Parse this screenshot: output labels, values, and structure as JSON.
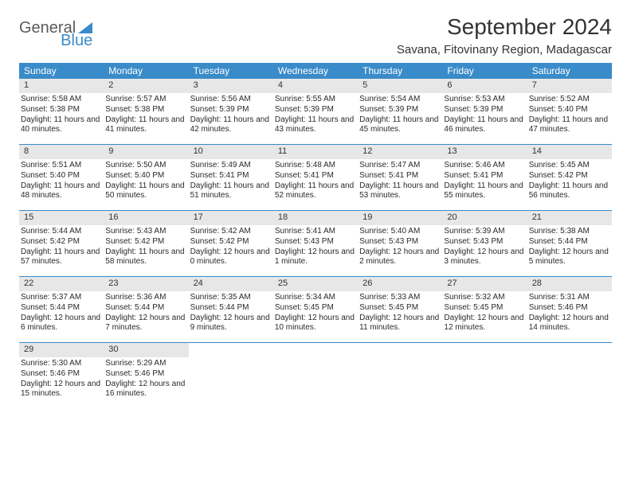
{
  "brand": {
    "part1": "General",
    "part2": "Blue"
  },
  "title": "September 2024",
  "location": "Savana, Fitovinany Region, Madagascar",
  "colors": {
    "header_bg": "#3a8bc9",
    "header_text": "#ffffff",
    "daynum_bg": "#e7e7e7",
    "rule": "#3a8bc9",
    "text": "#2a2a2a"
  },
  "weekdays": [
    "Sunday",
    "Monday",
    "Tuesday",
    "Wednesday",
    "Thursday",
    "Friday",
    "Saturday"
  ],
  "weeks": [
    [
      {
        "n": "1",
        "sr": "5:58 AM",
        "ss": "5:38 PM",
        "dl": "11 hours and 40 minutes."
      },
      {
        "n": "2",
        "sr": "5:57 AM",
        "ss": "5:38 PM",
        "dl": "11 hours and 41 minutes."
      },
      {
        "n": "3",
        "sr": "5:56 AM",
        "ss": "5:39 PM",
        "dl": "11 hours and 42 minutes."
      },
      {
        "n": "4",
        "sr": "5:55 AM",
        "ss": "5:39 PM",
        "dl": "11 hours and 43 minutes."
      },
      {
        "n": "5",
        "sr": "5:54 AM",
        "ss": "5:39 PM",
        "dl": "11 hours and 45 minutes."
      },
      {
        "n": "6",
        "sr": "5:53 AM",
        "ss": "5:39 PM",
        "dl": "11 hours and 46 minutes."
      },
      {
        "n": "7",
        "sr": "5:52 AM",
        "ss": "5:40 PM",
        "dl": "11 hours and 47 minutes."
      }
    ],
    [
      {
        "n": "8",
        "sr": "5:51 AM",
        "ss": "5:40 PM",
        "dl": "11 hours and 48 minutes."
      },
      {
        "n": "9",
        "sr": "5:50 AM",
        "ss": "5:40 PM",
        "dl": "11 hours and 50 minutes."
      },
      {
        "n": "10",
        "sr": "5:49 AM",
        "ss": "5:41 PM",
        "dl": "11 hours and 51 minutes."
      },
      {
        "n": "11",
        "sr": "5:48 AM",
        "ss": "5:41 PM",
        "dl": "11 hours and 52 minutes."
      },
      {
        "n": "12",
        "sr": "5:47 AM",
        "ss": "5:41 PM",
        "dl": "11 hours and 53 minutes."
      },
      {
        "n": "13",
        "sr": "5:46 AM",
        "ss": "5:41 PM",
        "dl": "11 hours and 55 minutes."
      },
      {
        "n": "14",
        "sr": "5:45 AM",
        "ss": "5:42 PM",
        "dl": "11 hours and 56 minutes."
      }
    ],
    [
      {
        "n": "15",
        "sr": "5:44 AM",
        "ss": "5:42 PM",
        "dl": "11 hours and 57 minutes."
      },
      {
        "n": "16",
        "sr": "5:43 AM",
        "ss": "5:42 PM",
        "dl": "11 hours and 58 minutes."
      },
      {
        "n": "17",
        "sr": "5:42 AM",
        "ss": "5:42 PM",
        "dl": "12 hours and 0 minutes."
      },
      {
        "n": "18",
        "sr": "5:41 AM",
        "ss": "5:43 PM",
        "dl": "12 hours and 1 minute."
      },
      {
        "n": "19",
        "sr": "5:40 AM",
        "ss": "5:43 PM",
        "dl": "12 hours and 2 minutes."
      },
      {
        "n": "20",
        "sr": "5:39 AM",
        "ss": "5:43 PM",
        "dl": "12 hours and 3 minutes."
      },
      {
        "n": "21",
        "sr": "5:38 AM",
        "ss": "5:44 PM",
        "dl": "12 hours and 5 minutes."
      }
    ],
    [
      {
        "n": "22",
        "sr": "5:37 AM",
        "ss": "5:44 PM",
        "dl": "12 hours and 6 minutes."
      },
      {
        "n": "23",
        "sr": "5:36 AM",
        "ss": "5:44 PM",
        "dl": "12 hours and 7 minutes."
      },
      {
        "n": "24",
        "sr": "5:35 AM",
        "ss": "5:44 PM",
        "dl": "12 hours and 9 minutes."
      },
      {
        "n": "25",
        "sr": "5:34 AM",
        "ss": "5:45 PM",
        "dl": "12 hours and 10 minutes."
      },
      {
        "n": "26",
        "sr": "5:33 AM",
        "ss": "5:45 PM",
        "dl": "12 hours and 11 minutes."
      },
      {
        "n": "27",
        "sr": "5:32 AM",
        "ss": "5:45 PM",
        "dl": "12 hours and 12 minutes."
      },
      {
        "n": "28",
        "sr": "5:31 AM",
        "ss": "5:46 PM",
        "dl": "12 hours and 14 minutes."
      }
    ],
    [
      {
        "n": "29",
        "sr": "5:30 AM",
        "ss": "5:46 PM",
        "dl": "12 hours and 15 minutes."
      },
      {
        "n": "30",
        "sr": "5:29 AM",
        "ss": "5:46 PM",
        "dl": "12 hours and 16 minutes."
      },
      {
        "empty": true
      },
      {
        "empty": true
      },
      {
        "empty": true
      },
      {
        "empty": true
      },
      {
        "empty": true
      }
    ]
  ],
  "labels": {
    "sunrise": "Sunrise:",
    "sunset": "Sunset:",
    "daylight": "Daylight:"
  }
}
